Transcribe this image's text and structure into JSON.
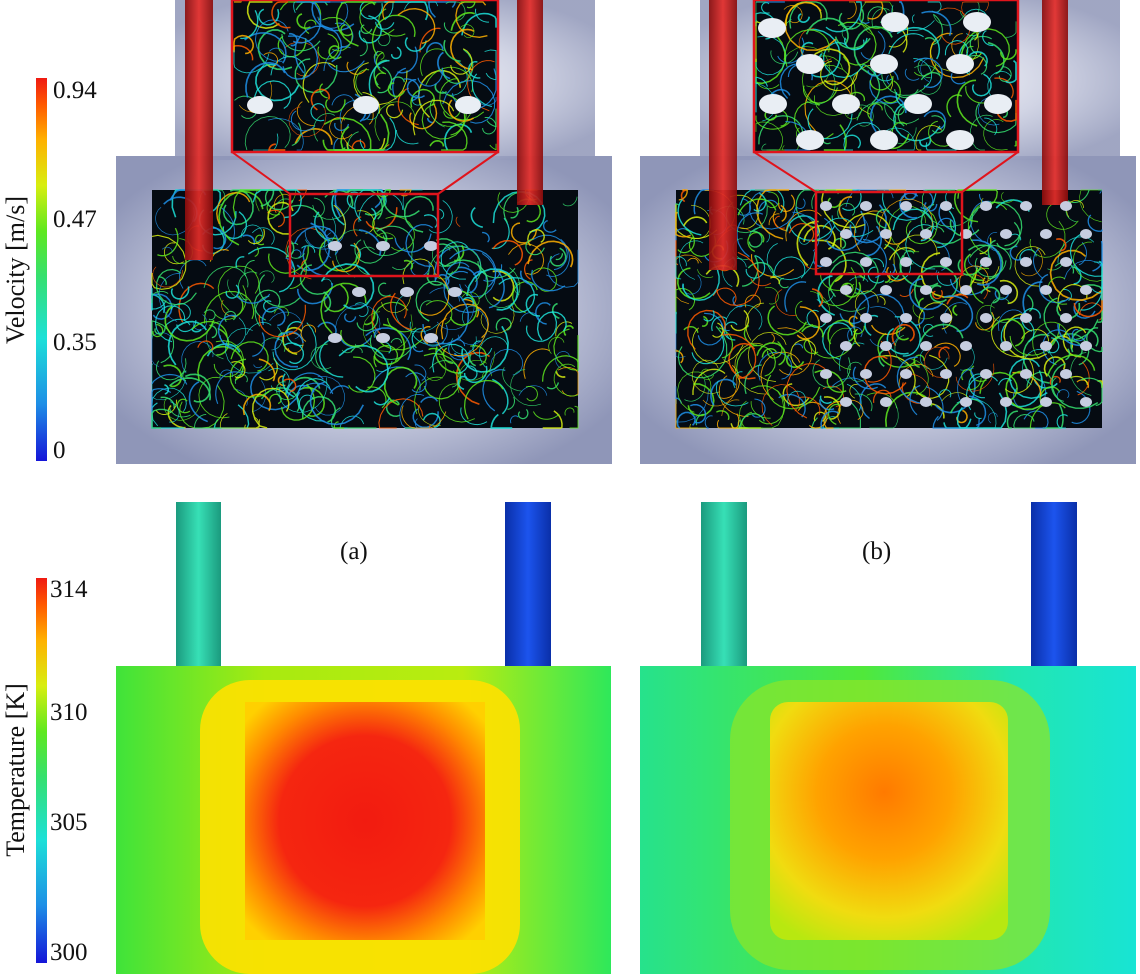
{
  "figure": {
    "panel_labels": [
      "(a)",
      "(b)"
    ],
    "velocity_colorbar": {
      "title": "Velocity [m/s]",
      "ticks": [
        "0.94",
        "0.47",
        "0.35",
        "0"
      ],
      "range": [
        0,
        0.94
      ]
    },
    "temperature_colorbar": {
      "title": "Temperature [K]",
      "ticks": [
        "314",
        "310",
        "305",
        "300"
      ],
      "range": [
        300,
        314
      ]
    },
    "panels": [
      {
        "label": "(a)",
        "description_free_tags": [
          "streamlines",
          "obstacles",
          "inset-zoom"
        ],
        "obstacle_count_visible": 9
      },
      {
        "label": "(b)",
        "description_free_tags": [
          "streamlines",
          "obstacles",
          "inset-zoom"
        ],
        "obstacle_count_visible": 54
      }
    ],
    "colors": {
      "cmap": [
        "#1515d8",
        "#1e8fe6",
        "#1de0d8",
        "#35e070",
        "#5ee81f",
        "#d8ee10",
        "#ffb000",
        "#ff5a00",
        "#ef1a12"
      ],
      "inset_border": "#e0141c",
      "pipe_red": "#d81e1e"
    }
  }
}
